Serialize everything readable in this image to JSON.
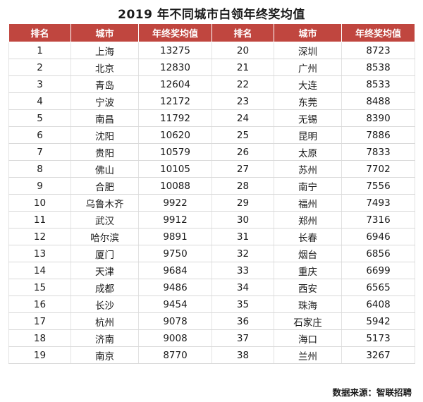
{
  "title": "2019 年不同城市白领年终奖均值",
  "headers": [
    "排名",
    "城市",
    "年终奖均值",
    "排名",
    "城市",
    "年终奖均值"
  ],
  "rows": [
    [
      [
        "1",
        "上海",
        "13275"
      ],
      [
        "20",
        "深圳",
        "8723"
      ]
    ],
    [
      [
        "2",
        "北京",
        "12830"
      ],
      [
        "21",
        "广州",
        "8538"
      ]
    ],
    [
      [
        "3",
        "青岛",
        "12604"
      ],
      [
        "22",
        "大连",
        "8533"
      ]
    ],
    [
      [
        "4",
        "宁波",
        "12172"
      ],
      [
        "23",
        "东莞",
        "8488"
      ]
    ],
    [
      [
        "5",
        "南昌",
        "11792"
      ],
      [
        "24",
        "无锡",
        "8390"
      ]
    ],
    [
      [
        "6",
        "沈阳",
        "10620"
      ],
      [
        "25",
        "昆明",
        "7886"
      ]
    ],
    [
      [
        "7",
        "贵阳",
        "10579"
      ],
      [
        "26",
        "太原",
        "7833"
      ]
    ],
    [
      [
        "8",
        "佛山",
        "10105"
      ],
      [
        "27",
        "苏州",
        "7702"
      ]
    ],
    [
      [
        "9",
        "合肥",
        "10088"
      ],
      [
        "28",
        "南宁",
        "7556"
      ]
    ],
    [
      [
        "10",
        "乌鲁木齐",
        "9922"
      ],
      [
        "29",
        "福州",
        "7493"
      ]
    ],
    [
      [
        "11",
        "武汉",
        "9912"
      ],
      [
        "30",
        "郑州",
        "7316"
      ]
    ],
    [
      [
        "12",
        "哈尔滨",
        "9891"
      ],
      [
        "31",
        "长春",
        "6946"
      ]
    ],
    [
      [
        "13",
        "厦门",
        "9750"
      ],
      [
        "32",
        "烟台",
        "6856"
      ]
    ],
    [
      [
        "14",
        "天津",
        "9684"
      ],
      [
        "33",
        "重庆",
        "6699"
      ]
    ],
    [
      [
        "15",
        "成都",
        "9486"
      ],
      [
        "34",
        "西安",
        "6565"
      ]
    ],
    [
      [
        "16",
        "长沙",
        "9454"
      ],
      [
        "35",
        "珠海",
        "6408"
      ]
    ],
    [
      [
        "17",
        "杭州",
        "9078"
      ],
      [
        "36",
        "石家庄",
        "5942"
      ]
    ],
    [
      [
        "18",
        "济南",
        "9008"
      ],
      [
        "37",
        "海口",
        "5173"
      ]
    ],
    [
      [
        "19",
        "南京",
        "8770"
      ],
      [
        "38",
        "兰州",
        "3267"
      ]
    ]
  ],
  "source": "数据来源：智联招聘",
  "colors": {
    "header_bg": "#c0463f",
    "header_text": "#ffffff"
  }
}
